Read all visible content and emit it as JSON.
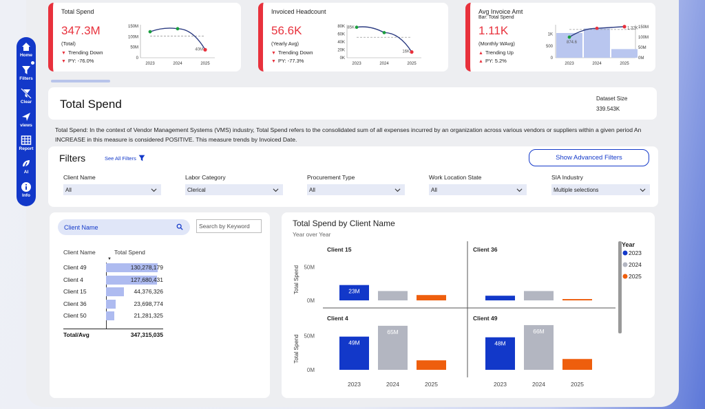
{
  "nav": {
    "items": [
      {
        "label": "Home",
        "icon": "home-icon"
      },
      {
        "label": "Filters",
        "icon": "funnel-icon"
      },
      {
        "label": "Clear",
        "icon": "clear-filter-icon"
      },
      {
        "label": "views",
        "icon": "bookmark-icon"
      },
      {
        "label": "Report",
        "icon": "table-icon"
      },
      {
        "label": "AI",
        "icon": "ai-icon"
      },
      {
        "label": "Info",
        "icon": "info-icon"
      }
    ]
  },
  "kpis": [
    {
      "title": "Total Spend",
      "subtitle": "",
      "value": "347.3M",
      "basis": "(Total)",
      "trend": "Trending Down",
      "trend_dir": "down",
      "py": "PY: -76.0%",
      "spark": {
        "x": [
          "2023",
          "2024",
          "2025"
        ],
        "y": [
          130,
          145,
          40
        ],
        "y_ticks": [
          "150M",
          "100M",
          "50M",
          "0"
        ],
        "avg": 108,
        "last_label": "40M",
        "ymax": 165
      }
    },
    {
      "title": "Invoiced Headcount",
      "subtitle": "",
      "value": "56.6K",
      "basis": "(Yearly Avg)",
      "trend": "Trending Down",
      "trend_dir": "down",
      "py": "PY: -77.3%",
      "spark": {
        "x": [
          "2023",
          "2024",
          "2025"
        ],
        "y": [
          85,
          70,
          16
        ],
        "y_ticks": [
          "80K",
          "60K",
          "40K",
          "20K",
          "0K"
        ],
        "avg": 57,
        "first_label": "85K",
        "last_label": "16K",
        "ymax": 92
      }
    },
    {
      "title": "Avg Invoice Amt",
      "subtitle": "Bar: Total Spend",
      "value": "1.11K",
      "basis": "(Monthly WAvg)",
      "trend": "Trending Up",
      "trend_dir": "up",
      "py": "PY: 5.2%",
      "spark": {
        "x": [
          "2023",
          "2024",
          "2025"
        ],
        "y": [
          874.6,
          1250,
          1320
        ],
        "bars": [
          120,
          142,
          42
        ],
        "y_ticks": [
          "1K",
          "500",
          "0"
        ],
        "y2_ticks": [
          "150M",
          "100M",
          "50M",
          "0M"
        ],
        "avg": 1200,
        "first_label": "874.6",
        "last_label": "1.32K"
      }
    }
  ],
  "title_card": {
    "title": "Total Spend",
    "dataset_label": "Dataset Size",
    "dataset_value": "339.543K"
  },
  "description": "Total Spend: In the context of Vendor Management Systems (VMS) industry, Total Spend refers to the consolidated sum of all expenses incurred by an organization across various vendors or suppliers within a given period An INCREASE in this measure is considered POSITIVE. This measure trends by Invoiced Date.",
  "filters": {
    "title": "Filters",
    "see_all": "See All Filters",
    "advanced_button": "Show Advanced Filters",
    "fields": [
      {
        "label": "Client Name",
        "value": "All"
      },
      {
        "label": "Labor Category",
        "value": "Clerical"
      },
      {
        "label": "Procurement Type",
        "value": "All"
      },
      {
        "label": "Work Location State",
        "value": "All"
      },
      {
        "label": "SIA Industry",
        "value": "Multiple selections"
      }
    ]
  },
  "table_panel": {
    "pill_label": "Client Name",
    "keyword_placeholder": "Search by Keyword",
    "col_name": "Client Name",
    "col_spend": "Total Spend",
    "rows": [
      {
        "name": "Client 49",
        "value": "130,278,179",
        "num": 130278179
      },
      {
        "name": "Client 4",
        "value": "127,680,431",
        "num": 127680431
      },
      {
        "name": "Client 15",
        "value": "44,376,326",
        "num": 44376326
      },
      {
        "name": "Client 36",
        "value": "23,698,774",
        "num": 23698774
      },
      {
        "name": "Client 50",
        "value": "21,281,325",
        "num": 21281325
      }
    ],
    "total_label": "Total/Avg",
    "total_value": "347,315,035"
  },
  "chart_panel": {
    "title": "Total Spend by Client Name",
    "subtitle": "Year over Year"
  },
  "chart_data": {
    "type": "bar",
    "title": "Total Spend by Client Name",
    "subtitle": "Year over Year",
    "ylabel": "Total Spend",
    "categories": [
      "2023",
      "2024",
      "2025"
    ],
    "legend": {
      "title": "Year",
      "position": "right",
      "entries": [
        "2023",
        "2024",
        "2025"
      ]
    },
    "colors": {
      "2023": "#1238c9",
      "2024": "#b3b6c1",
      "2025": "#ee5e0d"
    },
    "ylim": [
      0,
      70
    ],
    "y_ticks": [
      "0M",
      "25M",
      "50M"
    ],
    "panels": [
      {
        "client": "Client 15",
        "values": [
          23,
          14,
          8
        ],
        "data_labels": [
          "23M",
          "",
          ""
        ]
      },
      {
        "client": "Client 36",
        "values": [
          7,
          14,
          2
        ],
        "data_labels": [
          "",
          "",
          ""
        ]
      },
      {
        "client": "Client 4",
        "values": [
          49,
          65,
          14
        ],
        "data_labels": [
          "49M",
          "65M",
          ""
        ]
      },
      {
        "client": "Client 49",
        "values": [
          48,
          66,
          16
        ],
        "data_labels": [
          "48M",
          "66M",
          ""
        ]
      }
    ]
  }
}
